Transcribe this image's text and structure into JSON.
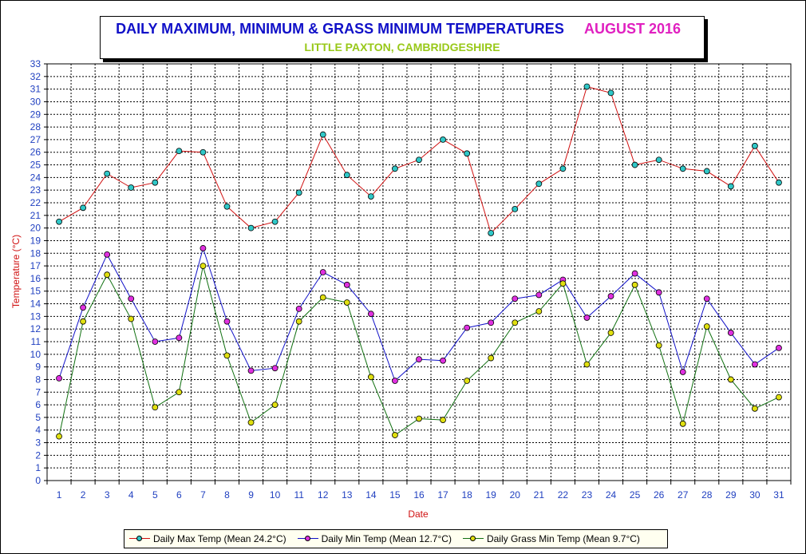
{
  "chart_data": {
    "type": "line",
    "title": "DAILY MAXIMUM, MINIMUM & GRASS MINIMUM TEMPERATURES",
    "title_period": "AUGUST 2016",
    "subtitle": "LITTLE PAXTON, CAMBRIDGESHIRE",
    "xlabel": "Date",
    "ylabel": "Temperature (°C)",
    "x": [
      1,
      2,
      3,
      4,
      5,
      6,
      7,
      8,
      9,
      10,
      11,
      12,
      13,
      14,
      15,
      16,
      17,
      18,
      19,
      20,
      21,
      22,
      23,
      24,
      25,
      26,
      27,
      28,
      29,
      30,
      31
    ],
    "ylim": [
      0,
      33
    ],
    "grid": true,
    "legend_position": "bottom",
    "series": [
      {
        "name": "Daily Max Temp (Mean 24.2°C)",
        "line_color": "#d01010",
        "marker_color": "#30c8c8",
        "values": [
          20.5,
          21.6,
          24.3,
          23.2,
          23.6,
          26.1,
          26.0,
          21.7,
          20.0,
          20.5,
          22.8,
          27.4,
          24.2,
          22.5,
          24.7,
          25.4,
          27.0,
          25.9,
          19.6,
          21.5,
          23.5,
          24.7,
          31.2,
          30.7,
          25.0,
          25.4,
          24.7,
          24.5,
          23.3,
          26.5,
          23.6
        ]
      },
      {
        "name": "Daily Min Temp (Mean 12.7°C)",
        "line_color": "#1010c8",
        "marker_color": "#e030e0",
        "values": [
          8.1,
          13.7,
          17.9,
          14.4,
          11.0,
          11.3,
          18.4,
          12.6,
          8.7,
          8.9,
          13.6,
          16.5,
          15.5,
          13.2,
          7.9,
          9.6,
          9.5,
          12.1,
          12.5,
          14.4,
          14.7,
          15.9,
          12.9,
          14.6,
          16.4,
          14.9,
          8.6,
          14.4,
          11.7,
          9.2,
          10.5
        ]
      },
      {
        "name": "Daily Grass Min Temp (Mean 9.7°C)",
        "line_color": "#107010",
        "marker_color": "#e0e010",
        "values": [
          3.5,
          12.6,
          16.3,
          12.8,
          5.8,
          7.0,
          17.0,
          9.9,
          4.6,
          6.0,
          12.6,
          14.5,
          14.1,
          8.2,
          3.6,
          4.9,
          4.8,
          7.9,
          9.7,
          12.5,
          13.4,
          15.6,
          9.2,
          11.7,
          15.5,
          10.7,
          4.5,
          12.2,
          8.0,
          5.7,
          6.6
        ]
      }
    ]
  }
}
